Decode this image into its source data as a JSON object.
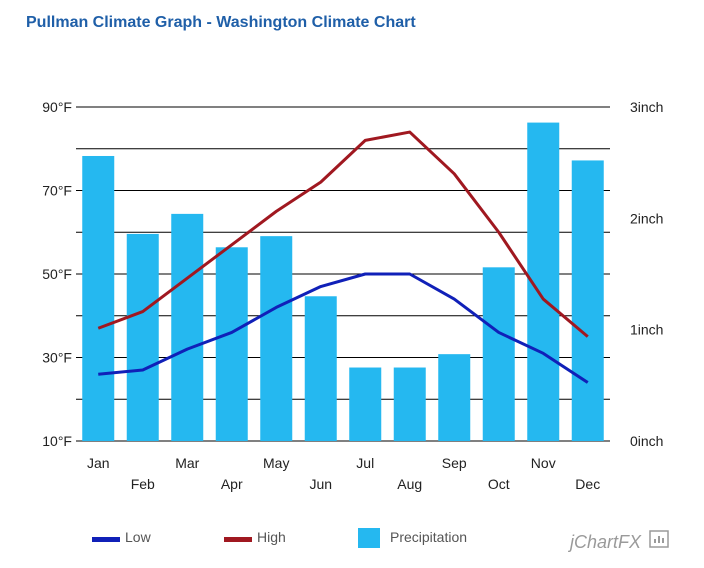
{
  "page": {
    "title": "Pullman Climate Graph - Washington Climate Chart",
    "brand": "jChartFX"
  },
  "colors": {
    "title": "#1f5fa8",
    "low": "#1020b8",
    "high": "#a01820",
    "precipitation": "#25b8f0",
    "grid": "#000000"
  },
  "chart_data": {
    "type": "bar",
    "categories": [
      "Jan",
      "Feb",
      "Mar",
      "Apr",
      "May",
      "Jun",
      "Jul",
      "Aug",
      "Sep",
      "Oct",
      "Nov",
      "Dec"
    ],
    "series": [
      {
        "name": "Low",
        "type": "line",
        "axis": "left",
        "values": [
          26,
          27,
          32,
          36,
          42,
          47,
          50,
          50,
          44,
          36,
          31,
          24
        ]
      },
      {
        "name": "High",
        "type": "line",
        "axis": "right-temperature",
        "values": [
          37,
          41,
          49,
          57,
          65,
          72,
          82,
          84,
          74,
          60,
          44,
          35
        ]
      },
      {
        "name": "Precipitation",
        "type": "bar",
        "axis": "right",
        "values": [
          2.56,
          1.86,
          2.04,
          1.74,
          1.84,
          1.3,
          0.66,
          0.66,
          0.78,
          1.56,
          2.86,
          2.52
        ]
      }
    ],
    "y_left": {
      "ticks": [
        "10°F",
        "30°F",
        "50°F",
        "70°F",
        "90°F"
      ],
      "range": [
        10,
        90
      ]
    },
    "y_right": {
      "ticks": [
        "0inch",
        "1inch",
        "2inch",
        "3inch"
      ],
      "range": [
        0,
        3
      ]
    },
    "grid": true,
    "legend": {
      "position": "bottom",
      "items": [
        "Low",
        "High",
        "Precipitation"
      ]
    }
  }
}
